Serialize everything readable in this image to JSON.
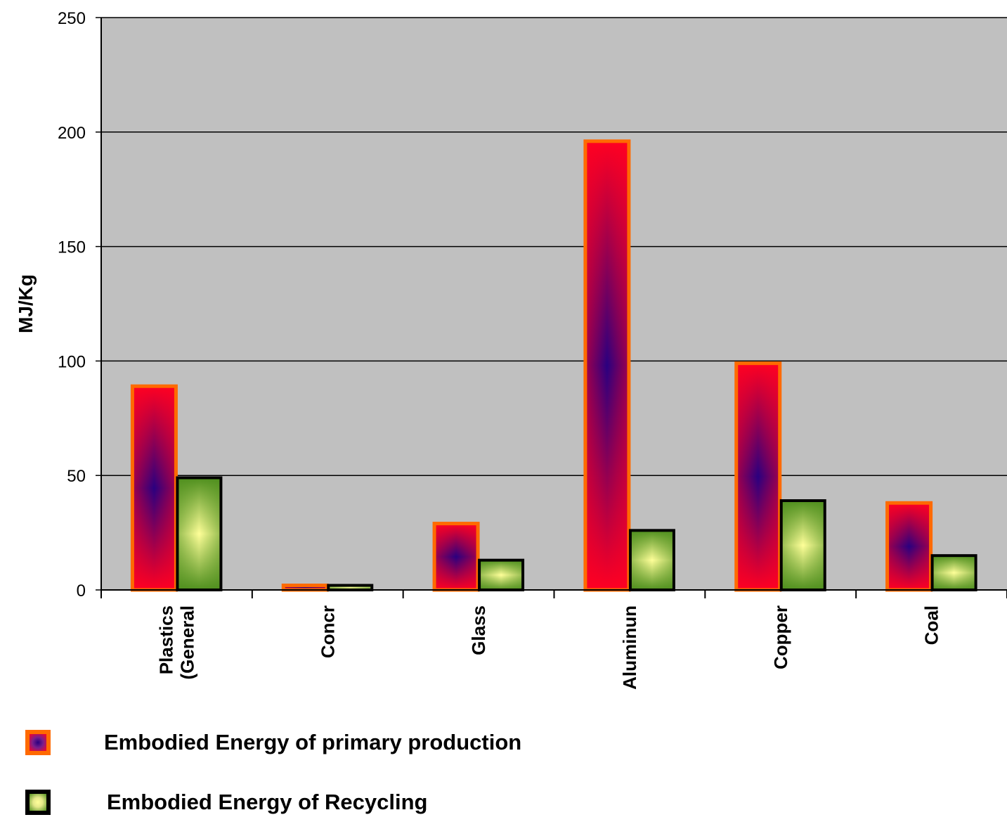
{
  "chart_data": {
    "type": "bar",
    "title": "",
    "xlabel": "",
    "ylabel": "MJ/Kg",
    "ylim": [
      0,
      250
    ],
    "yticks": [
      0,
      50,
      100,
      150,
      200,
      250
    ],
    "grid": true,
    "legend_position": "bottom-left",
    "categories": [
      [
        "Plastics",
        "(General"
      ],
      [
        "Concr"
      ],
      [
        "Glass"
      ],
      [
        "Aluminun"
      ],
      [
        "Copper"
      ],
      [
        "Coal"
      ]
    ],
    "series": [
      {
        "name": "Embodied Energy of primary production",
        "values": [
          89,
          2,
          29,
          196,
          99,
          38
        ]
      },
      {
        "name": "Embodied Energy of Recycling",
        "values": [
          49,
          2,
          13,
          26,
          39,
          15
        ]
      }
    ],
    "colors": {
      "plot_background": "#c0c0c0",
      "primary_border": "#ff6a00",
      "primary_edge": "#ff0022",
      "primary_center": "#2a0080",
      "recycle_border": "#000000",
      "recycle_edge": "#4f8f1e",
      "recycle_center": "#ffff99"
    }
  }
}
